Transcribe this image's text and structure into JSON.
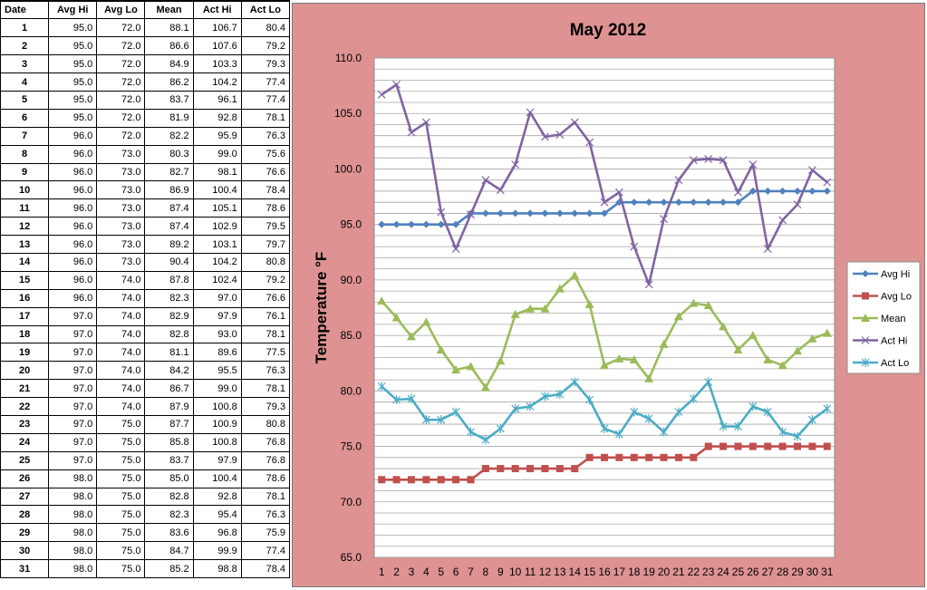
{
  "table": {
    "headers": [
      "Date",
      "Avg Hi",
      "Avg Lo",
      "Mean",
      "Act Hi",
      "Act Lo"
    ],
    "rows": [
      [
        "1",
        "95.0",
        "72.0",
        "88.1",
        "106.7",
        "80.4"
      ],
      [
        "2",
        "95.0",
        "72.0",
        "86.6",
        "107.6",
        "79.2"
      ],
      [
        "3",
        "95.0",
        "72.0",
        "84.9",
        "103.3",
        "79.3"
      ],
      [
        "4",
        "95.0",
        "72.0",
        "86.2",
        "104.2",
        "77.4"
      ],
      [
        "5",
        "95.0",
        "72.0",
        "83.7",
        "96.1",
        "77.4"
      ],
      [
        "6",
        "95.0",
        "72.0",
        "81.9",
        "92.8",
        "78.1"
      ],
      [
        "7",
        "96.0",
        "72.0",
        "82.2",
        "95.9",
        "76.3"
      ],
      [
        "8",
        "96.0",
        "73.0",
        "80.3",
        "99.0",
        "75.6"
      ],
      [
        "9",
        "96.0",
        "73.0",
        "82.7",
        "98.1",
        "76.6"
      ],
      [
        "10",
        "96.0",
        "73.0",
        "86.9",
        "100.4",
        "78.4"
      ],
      [
        "11",
        "96.0",
        "73.0",
        "87.4",
        "105.1",
        "78.6"
      ],
      [
        "12",
        "96.0",
        "73.0",
        "87.4",
        "102.9",
        "79.5"
      ],
      [
        "13",
        "96.0",
        "73.0",
        "89.2",
        "103.1",
        "79.7"
      ],
      [
        "14",
        "96.0",
        "73.0",
        "90.4",
        "104.2",
        "80.8"
      ],
      [
        "15",
        "96.0",
        "74.0",
        "87.8",
        "102.4",
        "79.2"
      ],
      [
        "16",
        "96.0",
        "74.0",
        "82.3",
        "97.0",
        "76.6"
      ],
      [
        "17",
        "97.0",
        "74.0",
        "82.9",
        "97.9",
        "76.1"
      ],
      [
        "18",
        "97.0",
        "74.0",
        "82.8",
        "93.0",
        "78.1"
      ],
      [
        "19",
        "97.0",
        "74.0",
        "81.1",
        "89.6",
        "77.5"
      ],
      [
        "20",
        "97.0",
        "74.0",
        "84.2",
        "95.5",
        "76.3"
      ],
      [
        "21",
        "97.0",
        "74.0",
        "86.7",
        "99.0",
        "78.1"
      ],
      [
        "22",
        "97.0",
        "74.0",
        "87.9",
        "100.8",
        "79.3"
      ],
      [
        "23",
        "97.0",
        "75.0",
        "87.7",
        "100.9",
        "80.8"
      ],
      [
        "24",
        "97.0",
        "75.0",
        "85.8",
        "100.8",
        "76.8"
      ],
      [
        "25",
        "97.0",
        "75.0",
        "83.7",
        "97.9",
        "76.8"
      ],
      [
        "26",
        "98.0",
        "75.0",
        "85.0",
        "100.4",
        "78.6"
      ],
      [
        "27",
        "98.0",
        "75.0",
        "82.8",
        "92.8",
        "78.1"
      ],
      [
        "28",
        "98.0",
        "75.0",
        "82.3",
        "95.4",
        "76.3"
      ],
      [
        "29",
        "98.0",
        "75.0",
        "83.6",
        "96.8",
        "75.9"
      ],
      [
        "30",
        "98.0",
        "75.0",
        "84.7",
        "99.9",
        "77.4"
      ],
      [
        "31",
        "98.0",
        "75.0",
        "85.2",
        "98.8",
        "78.4"
      ]
    ]
  },
  "chart_data": {
    "type": "line",
    "title": "May 2012",
    "xlabel": "",
    "ylabel": "Temperature °F",
    "x": [
      1,
      2,
      3,
      4,
      5,
      6,
      7,
      8,
      9,
      10,
      11,
      12,
      13,
      14,
      15,
      16,
      17,
      18,
      19,
      20,
      21,
      22,
      23,
      24,
      25,
      26,
      27,
      28,
      29,
      30,
      31
    ],
    "x_tick_labels": [
      "1",
      "2",
      "3",
      "4",
      "5",
      "6",
      "7",
      "8",
      "9",
      "10",
      "11",
      "12",
      "13",
      "14",
      "15",
      "16",
      "17",
      "18",
      "19",
      "20",
      "21",
      "22",
      "23",
      "24",
      "25",
      "26",
      "27",
      "28",
      "29",
      "30",
      "31"
    ],
    "ylim": [
      65,
      110
    ],
    "y_ticks": [
      "65.0",
      "70.0",
      "75.0",
      "80.0",
      "85.0",
      "90.0",
      "95.0",
      "100.0",
      "105.0",
      "110.0"
    ],
    "grid": "horizontal",
    "legend_position": "right",
    "series": [
      {
        "name": "Avg Hi",
        "color": "#4f81bd",
        "marker": "diamond",
        "values": [
          95,
          95,
          95,
          95,
          95,
          95,
          96,
          96,
          96,
          96,
          96,
          96,
          96,
          96,
          96,
          96,
          97,
          97,
          97,
          97,
          97,
          97,
          97,
          97,
          97,
          98,
          98,
          98,
          98,
          98,
          98
        ]
      },
      {
        "name": "Avg Lo",
        "color": "#c0504d",
        "marker": "square",
        "values": [
          72,
          72,
          72,
          72,
          72,
          72,
          72,
          73,
          73,
          73,
          73,
          73,
          73,
          73,
          74,
          74,
          74,
          74,
          74,
          74,
          74,
          74,
          75,
          75,
          75,
          75,
          75,
          75,
          75,
          75,
          75
        ]
      },
      {
        "name": "Mean",
        "color": "#9bbb59",
        "marker": "triangle",
        "values": [
          88.1,
          86.6,
          84.9,
          86.2,
          83.7,
          81.9,
          82.2,
          80.3,
          82.7,
          86.9,
          87.4,
          87.4,
          89.2,
          90.4,
          87.8,
          82.3,
          82.9,
          82.8,
          81.1,
          84.2,
          86.7,
          87.9,
          87.7,
          85.8,
          83.7,
          85.0,
          82.8,
          82.3,
          83.6,
          84.7,
          85.2
        ]
      },
      {
        "name": "Act Hi",
        "color": "#8064a2",
        "marker": "x",
        "values": [
          106.7,
          107.6,
          103.3,
          104.2,
          96.1,
          92.8,
          95.9,
          99.0,
          98.1,
          100.4,
          105.1,
          102.9,
          103.1,
          104.2,
          102.4,
          97.0,
          97.9,
          93.0,
          89.6,
          95.5,
          99.0,
          100.8,
          100.9,
          100.8,
          97.9,
          100.4,
          92.8,
          95.4,
          96.8,
          99.9,
          98.8
        ]
      },
      {
        "name": "Act Lo",
        "color": "#4bacc6",
        "marker": "star",
        "values": [
          80.4,
          79.2,
          79.3,
          77.4,
          77.4,
          78.1,
          76.3,
          75.6,
          76.6,
          78.4,
          78.6,
          79.5,
          79.7,
          80.8,
          79.2,
          76.6,
          76.1,
          78.1,
          77.5,
          76.3,
          78.1,
          79.3,
          80.8,
          76.8,
          76.8,
          78.6,
          78.1,
          76.3,
          75.9,
          77.4,
          78.4
        ]
      }
    ]
  }
}
